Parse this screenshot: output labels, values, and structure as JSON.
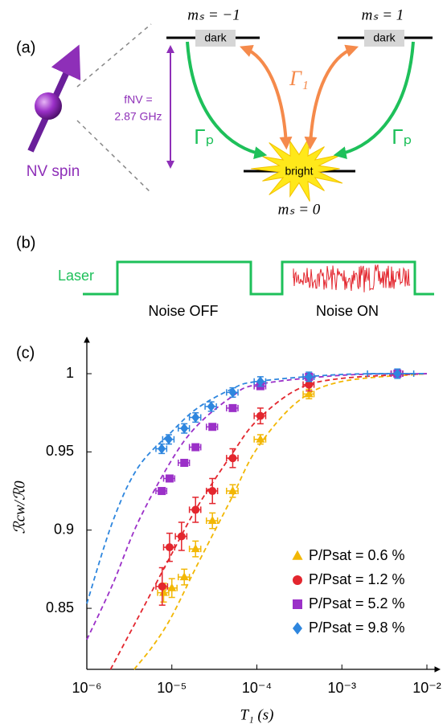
{
  "panel_a": {
    "label": "(a)",
    "level_minus": "mₛ = −1",
    "level_plus": "mₛ = 1",
    "level_zero": "mₛ = 0",
    "dark_left": "dark",
    "dark_right": "dark",
    "bright": "bright",
    "gamma_1": "Γ₁",
    "gamma_p_left": "Γₚ",
    "gamma_p_right": "Γₚ",
    "freq_name": "fNV =",
    "freq_value": "2.87 GHz",
    "spin": "NV spin"
  },
  "panel_b": {
    "label": "(b)",
    "laser": "Laser",
    "noise_off": "Noise OFF",
    "noise_on": "Noise ON"
  },
  "chart_data": {
    "type": "scatter",
    "panel_label": "(c)",
    "xlabel": "T₁ (s)",
    "ylabel": "ℛcw/ℛ0",
    "xscale": "log",
    "xlim": [
      1e-06,
      0.01
    ],
    "ylim": [
      0.811,
      1.018
    ],
    "xticks": [
      {
        "value": 1e-06,
        "label": "10⁻⁶"
      },
      {
        "value": 1e-05,
        "label": "10⁻⁵"
      },
      {
        "value": 0.0001,
        "label": "10⁻⁴"
      },
      {
        "value": 0.001,
        "label": "10⁻³"
      },
      {
        "value": 0.01,
        "label": "10⁻²"
      }
    ],
    "yticks": [
      0.85,
      0.9,
      0.95,
      1
    ],
    "legend": "lower right",
    "series": [
      {
        "name": "P/Psat = 0.6 %",
        "color": "#f2b705",
        "marker": "triangle",
        "x": [
          8e-06,
          1e-05,
          1.4e-05,
          1.9e-05,
          3e-05,
          5.2e-05,
          0.00011,
          0.00041,
          0.0045
        ],
        "values": [
          0.86,
          0.863,
          0.87,
          0.888,
          0.906,
          0.925,
          0.958,
          0.987,
          1.0
        ],
        "yerr": [
          0.006,
          0.006,
          0.005,
          0.005,
          0.005,
          0.004,
          0.003,
          0.003,
          0.002
        ],
        "xerr": [
          1.2e-06,
          1.5e-06,
          2.1e-06,
          2.9e-06,
          4.5e-06,
          8e-06,
          1.7e-05,
          6e-05,
          0.0007
        ],
        "fit": {
          "x": [
            3.6e-06,
            6e-06,
            1e-05,
            2e-05,
            5e-05,
            0.0001,
            0.0003,
            0.001,
            0.01
          ],
          "values": [
            0.811,
            0.826,
            0.845,
            0.878,
            0.92,
            0.952,
            0.982,
            0.995,
            1.0
          ]
        }
      },
      {
        "name": "P/Psat = 1.2 %",
        "color": "#e3262e",
        "marker": "circle",
        "x": [
          7.7e-06,
          9.4e-06,
          1.3e-05,
          1.9e-05,
          3e-05,
          5.2e-05,
          0.00011,
          0.00041,
          0.0045
        ],
        "values": [
          0.864,
          0.889,
          0.896,
          0.913,
          0.925,
          0.946,
          0.973,
          0.993,
          1.0
        ],
        "yerr": [
          0.012,
          0.009,
          0.009,
          0.008,
          0.008,
          0.006,
          0.005,
          0.004,
          0.002
        ],
        "xerr": [
          1.2e-06,
          1.4e-06,
          2e-06,
          2.9e-06,
          4.5e-06,
          8e-06,
          1.7e-05,
          6e-05,
          0.0007
        ],
        "fit": {
          "x": [
            1.9e-06,
            4e-06,
            1e-05,
            2e-05,
            5e-05,
            0.0001,
            0.0003,
            0.001,
            0.01
          ],
          "values": [
            0.811,
            0.844,
            0.885,
            0.915,
            0.948,
            0.97,
            0.99,
            0.997,
            1.0
          ]
        }
      },
      {
        "name": "P/Psat = 5.2 %",
        "color": "#9b30c8",
        "marker": "square",
        "x": [
          7.6e-06,
          9.4e-06,
          1.4e-05,
          1.9e-05,
          3e-05,
          5.2e-05,
          0.00011,
          0.00041,
          0.0045
        ],
        "values": [
          0.925,
          0.933,
          0.943,
          0.953,
          0.966,
          0.978,
          0.992,
          0.998,
          1.0
        ],
        "yerr": [
          0.002,
          0.002,
          0.002,
          0.002,
          0.002,
          0.002,
          0.002,
          0.002,
          0.002
        ],
        "xerr": [
          1.1e-06,
          1.4e-06,
          2.1e-06,
          2.9e-06,
          4.5e-06,
          8e-06,
          1.7e-05,
          6e-05,
          0.0007
        ],
        "fit": {
          "x": [
            1e-06,
            2e-06,
            4e-06,
            1e-05,
            2e-05,
            5e-05,
            0.0001,
            0.001,
            0.01
          ],
          "values": [
            0.83,
            0.865,
            0.905,
            0.945,
            0.967,
            0.985,
            0.993,
            0.999,
            1.0
          ]
        }
      },
      {
        "name": "P/Psat = 9.8 %",
        "color": "#2e86de",
        "marker": "diamond",
        "x": [
          7.6e-06,
          9.2e-06,
          1.4e-05,
          1.9e-05,
          2.9e-05,
          5.2e-05,
          0.00011,
          0.00041,
          0.0045
        ],
        "values": [
          0.952,
          0.958,
          0.965,
          0.972,
          0.979,
          0.988,
          0.995,
          0.998,
          1.0
        ],
        "yerr": [
          0.003,
          0.003,
          0.003,
          0.003,
          0.003,
          0.003,
          0.003,
          0.003,
          0.003
        ],
        "xerr": [
          1.1e-06,
          1.4e-06,
          2.1e-06,
          2.9e-06,
          4.4e-06,
          8e-06,
          1.7e-05,
          6e-05,
          0.0025
        ],
        "fit": {
          "x": [
            1e-06,
            2e-06,
            4e-06,
            1e-05,
            2e-05,
            5e-05,
            0.0001,
            0.001,
            0.01
          ],
          "values": [
            0.853,
            0.905,
            0.94,
            0.963,
            0.978,
            0.99,
            0.995,
            0.9995,
            1.0
          ]
        }
      }
    ]
  }
}
